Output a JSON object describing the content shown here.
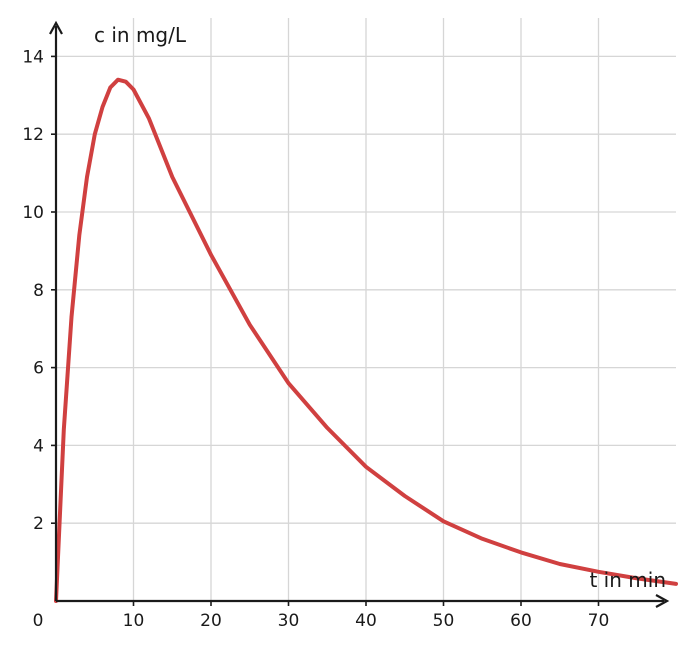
{
  "chart_data": {
    "type": "line",
    "xlabel": "t in min",
    "ylabel": "c in mg/L",
    "xlim": [
      0,
      80
    ],
    "ylim": [
      0,
      14
    ],
    "xticks": [
      10,
      20,
      30,
      40,
      50,
      60,
      70
    ],
    "yticks": [
      2,
      4,
      6,
      8,
      10,
      12,
      14
    ],
    "origin_label": "0",
    "grid": true,
    "series": [
      {
        "color": "#d04040",
        "x": [
          0,
          1,
          2,
          3,
          4,
          5,
          6,
          7,
          8,
          9,
          10,
          12,
          15,
          20,
          25,
          30,
          35,
          40,
          45,
          50,
          55,
          60,
          65,
          70,
          75,
          80
        ],
        "y": [
          0,
          4.4,
          7.3,
          9.4,
          10.9,
          12.0,
          12.7,
          13.2,
          13.4,
          13.35,
          13.15,
          12.4,
          10.9,
          8.9,
          7.1,
          5.6,
          4.45,
          3.45,
          2.7,
          2.05,
          1.6,
          1.25,
          0.95,
          0.75,
          0.58,
          0.44
        ]
      }
    ]
  }
}
